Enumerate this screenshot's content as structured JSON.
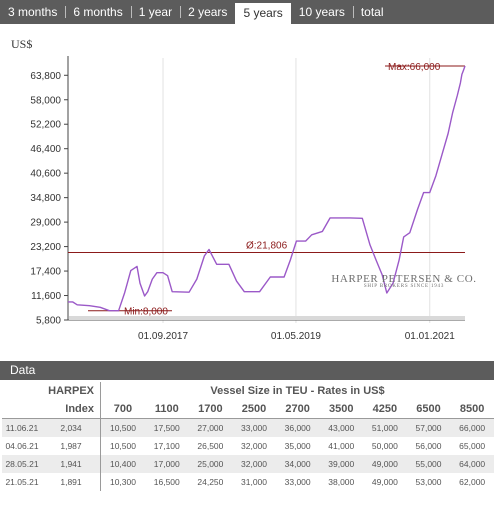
{
  "tabs": [
    {
      "label": "3 months",
      "active": false
    },
    {
      "label": "6 months",
      "active": false
    },
    {
      "label": "1 year",
      "active": false
    },
    {
      "label": "2 years",
      "active": false
    },
    {
      "label": "5 years",
      "active": true
    },
    {
      "label": "10 years",
      "active": false
    },
    {
      "label": "total",
      "active": false
    }
  ],
  "logo": {
    "name": "HARPER PETERSEN & CO.",
    "tagline": "SHIP BROKERS SINCE 1943"
  },
  "chart_data": {
    "type": "line",
    "unit_label": "US$",
    "line_color": "#9b59c8",
    "ref_color": "#8b1a1a",
    "ylim": [
      5800,
      66000
    ],
    "xlim": [
      "2016-06-24",
      "2021-06-11"
    ],
    "y_ticks": [
      "5,800",
      "11,600",
      "17,400",
      "23,200",
      "29,000",
      "34,800",
      "40,600",
      "46,400",
      "52,200",
      "58,000",
      "63,800"
    ],
    "y_tick_values": [
      5800,
      11600,
      17400,
      23200,
      29000,
      34800,
      40600,
      46400,
      52200,
      58000,
      63800
    ],
    "x_ticks": [
      {
        "label": "01.09.2017",
        "date": "2017-09-01"
      },
      {
        "label": "01.05.2019",
        "date": "2019-05-01"
      },
      {
        "label": "01.01.2021",
        "date": "2021-01-01"
      }
    ],
    "grid_x": true,
    "grid_y": false,
    "annotations": {
      "max_label": "Max:66,000",
      "min_label": "Min:8,000",
      "avg_label": "Ø:21,806",
      "max_value": 66000,
      "min_value": 8000,
      "avg_value": 21806
    },
    "series": [
      {
        "points": [
          [
            "2016-06-24",
            10100
          ],
          [
            "2016-07-15",
            10100
          ],
          [
            "2016-08-05",
            9400
          ],
          [
            "2016-09-30",
            9200
          ],
          [
            "2016-11-18",
            8800
          ],
          [
            "2016-12-30",
            8000
          ],
          [
            "2017-02-10",
            8000
          ],
          [
            "2017-03-10",
            12300
          ],
          [
            "2017-04-07",
            17500
          ],
          [
            "2017-05-05",
            18500
          ],
          [
            "2017-05-19",
            14500
          ],
          [
            "2017-06-09",
            11500
          ],
          [
            "2017-06-23",
            12500
          ],
          [
            "2017-07-14",
            15500
          ],
          [
            "2017-08-04",
            17000
          ],
          [
            "2017-09-01",
            17000
          ],
          [
            "2017-09-22",
            16300
          ],
          [
            "2017-10-13",
            12500
          ],
          [
            "2017-12-29",
            12400
          ],
          [
            "2018-02-02",
            15500
          ],
          [
            "2018-03-09",
            21000
          ],
          [
            "2018-03-30",
            22500
          ],
          [
            "2018-05-04",
            19000
          ],
          [
            "2018-06-29",
            19000
          ],
          [
            "2018-08-03",
            15000
          ],
          [
            "2018-09-07",
            12500
          ],
          [
            "2018-11-16",
            12500
          ],
          [
            "2019-01-04",
            16000
          ],
          [
            "2019-03-08",
            16000
          ],
          [
            "2019-04-05",
            20000
          ],
          [
            "2019-05-03",
            24500
          ],
          [
            "2019-06-14",
            24500
          ],
          [
            "2019-07-12",
            26000
          ],
          [
            "2019-08-30",
            26800
          ],
          [
            "2019-10-04",
            30000
          ],
          [
            "2020-01-03",
            30000
          ],
          [
            "2020-02-28",
            29900
          ],
          [
            "2020-04-03",
            23600
          ],
          [
            "2020-05-01",
            20000
          ],
          [
            "2020-05-29",
            16500
          ],
          [
            "2020-06-19",
            12200
          ],
          [
            "2020-07-17",
            14500
          ],
          [
            "2020-08-14",
            20000
          ],
          [
            "2020-09-04",
            25500
          ],
          [
            "2020-10-02",
            26500
          ],
          [
            "2020-11-06",
            32000
          ],
          [
            "2020-12-04",
            36000
          ],
          [
            "2021-01-01",
            36000
          ],
          [
            "2021-01-29",
            40000
          ],
          [
            "2021-02-26",
            45000
          ],
          [
            "2021-03-26",
            50000
          ],
          [
            "2021-04-16",
            55000
          ],
          [
            "2021-05-07",
            59000
          ],
          [
            "2021-05-21",
            62000
          ],
          [
            "2021-05-28",
            64000
          ],
          [
            "2021-06-04",
            65000
          ],
          [
            "2021-06-11",
            66000
          ]
        ]
      }
    ]
  },
  "data_section": {
    "title": "Data",
    "header_harpex": "HARPEX",
    "header_index": "Index",
    "header_vessel": "Vessel Size in TEU - Rates in US$",
    "sizes": [
      "700",
      "1100",
      "1700",
      "2500",
      "2700",
      "3500",
      "4250",
      "6500",
      "8500"
    ],
    "rows": [
      {
        "date": "11.06.21",
        "index": "2,034",
        "rates": [
          "10,500",
          "17,500",
          "27,000",
          "33,000",
          "36,000",
          "43,000",
          "51,000",
          "57,000",
          "66,000"
        ]
      },
      {
        "date": "04.06.21",
        "index": "1,987",
        "rates": [
          "10,500",
          "17,100",
          "26,500",
          "32,000",
          "35,000",
          "41,000",
          "50,000",
          "56,000",
          "65,000"
        ]
      },
      {
        "date": "28.05.21",
        "index": "1,941",
        "rates": [
          "10,400",
          "17,000",
          "25,000",
          "32,000",
          "34,000",
          "39,000",
          "49,000",
          "55,000",
          "64,000"
        ]
      },
      {
        "date": "21.05.21",
        "index": "1,891",
        "rates": [
          "10,300",
          "16,500",
          "24,250",
          "31,000",
          "33,000",
          "38,000",
          "49,000",
          "53,000",
          "62,000"
        ]
      }
    ]
  }
}
